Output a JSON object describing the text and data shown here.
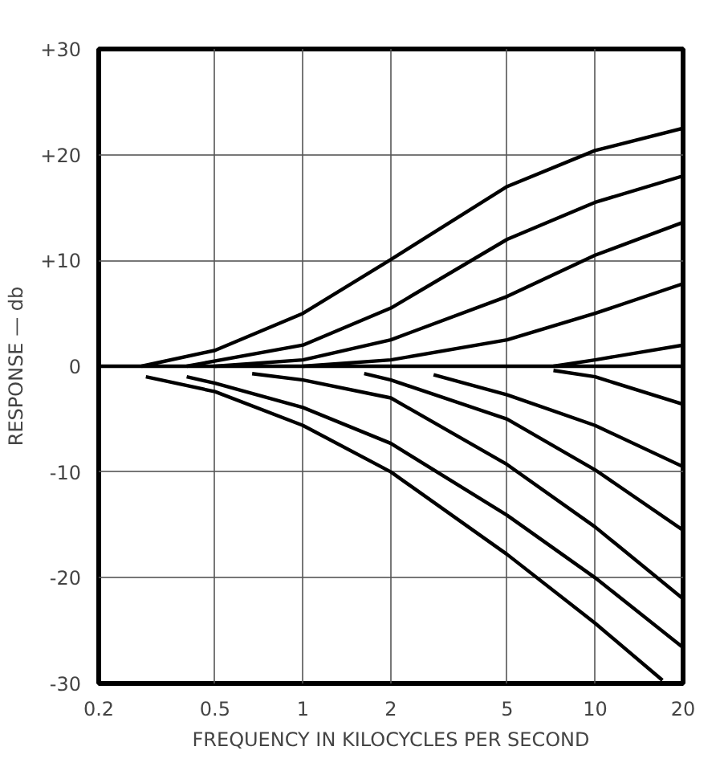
{
  "chart_data": {
    "type": "line",
    "xlabel": "FREQUENCY IN KILOCYCLES PER SECOND",
    "ylabel": "RESPONSE — db",
    "log": "x",
    "grid": true,
    "line_style": "solid",
    "marker": "none",
    "xlim": [
      0.2,
      20
    ],
    "xticks": [
      0.2,
      0.5,
      1,
      2,
      5,
      10,
      20
    ],
    "ylim": [
      -30,
      30
    ],
    "yticks": [
      {
        "value": 30,
        "label": "+30"
      },
      {
        "value": 20,
        "label": "+20"
      },
      {
        "value": 10,
        "label": "+10"
      },
      0,
      -10,
      -20,
      -30
    ],
    "series": [
      {
        "color": "#000000",
        "x": [
          0.28,
          0.5,
          1,
          2,
          5,
          10,
          20
        ],
        "values": [
          0,
          1.5,
          5,
          10.1,
          17,
          20.4,
          22.5
        ]
      },
      {
        "color": "#000000",
        "x": [
          0.4,
          1,
          2,
          5,
          10,
          20
        ],
        "values": [
          0,
          2,
          5.5,
          12,
          15.5,
          18
        ]
      },
      {
        "color": "#000000",
        "x": [
          0.5,
          1,
          2,
          5,
          10,
          20
        ],
        "values": [
          0,
          0.6,
          2.5,
          6.6,
          10.5,
          13.6
        ]
      },
      {
        "color": "#000000",
        "x": [
          1,
          2,
          5,
          10,
          20
        ],
        "values": [
          0,
          0.6,
          2.5,
          5,
          7.8
        ]
      },
      {
        "color": "#000000",
        "x": [
          7.2,
          10,
          20
        ],
        "values": [
          0,
          0.6,
          2
        ]
      },
      {
        "color": "#000000",
        "x": [
          0.2,
          20
        ],
        "values": [
          0,
          0
        ]
      },
      {
        "color": "#000000",
        "x": [
          0.29,
          0.5,
          1,
          2,
          5,
          10,
          17
        ],
        "values": [
          -1,
          -2.4,
          -5.6,
          -10,
          -17.8,
          -24.3,
          -29.7
        ]
      },
      {
        "color": "#000000",
        "x": [
          0.4,
          0.5,
          1,
          2,
          5,
          10,
          20
        ],
        "values": [
          -1,
          -1.6,
          -3.9,
          -7.3,
          -14.1,
          -20,
          -26.6
        ]
      },
      {
        "color": "#000000",
        "x": [
          0.67,
          1,
          2,
          5,
          10,
          20
        ],
        "values": [
          -0.7,
          -1.3,
          -3,
          -9.3,
          -15.2,
          -22
        ]
      },
      {
        "color": "#000000",
        "x": [
          1.62,
          2,
          5,
          10,
          20
        ],
        "values": [
          -0.7,
          -1.3,
          -5,
          -9.8,
          -15.5
        ]
      },
      {
        "color": "#000000",
        "x": [
          2.8,
          5,
          10,
          20
        ],
        "values": [
          -0.8,
          -2.7,
          -5.6,
          -9.5
        ]
      },
      {
        "color": "#000000",
        "x": [
          7.2,
          10,
          20
        ],
        "values": [
          -0.4,
          -1,
          -3.6
        ]
      }
    ]
  }
}
